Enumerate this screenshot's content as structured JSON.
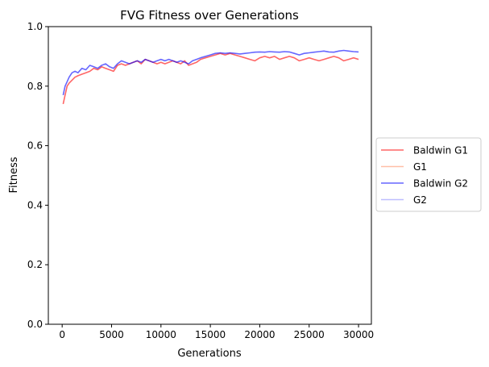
{
  "chart_data": {
    "type": "line",
    "title": "FVG Fitness over Generations",
    "xlabel": "Generations",
    "ylabel": "Fitness",
    "xlim": [
      -1400,
      31300
    ],
    "ylim": [
      0.0,
      1.0
    ],
    "xticks": [
      0,
      5000,
      10000,
      15000,
      20000,
      25000,
      30000
    ],
    "yticks": [
      0.0,
      0.2,
      0.4,
      0.6,
      0.8,
      1.0
    ],
    "xtick_labels": [
      "0",
      "5000",
      "10000",
      "15000",
      "20000",
      "25000",
      "30000"
    ],
    "ytick_labels": [
      "0.0",
      "0.2",
      "0.4",
      "0.6",
      "0.8",
      "1.0"
    ],
    "grid": false,
    "legend_position": "outside-right",
    "series": [
      {
        "name": "Baldwin G1",
        "color": "#ff0000",
        "opacity": 0.6,
        "x": [
          100,
          300,
          500,
          700,
          1000,
          1300,
          1600,
          2000,
          2400,
          2800,
          3200,
          3600,
          4000,
          4400,
          4800,
          5200,
          5600,
          6000,
          6400,
          6800,
          7200,
          7600,
          8000,
          8400,
          8800,
          9200,
          9600,
          10000,
          10400,
          10800,
          11200,
          11600,
          12000,
          12400,
          12800,
          13200,
          13600,
          14000,
          14500,
          15000,
          15500,
          16000,
          16500,
          17000,
          17500,
          18000,
          18500,
          19000,
          19500,
          20000,
          20500,
          21000,
          21500,
          22000,
          22500,
          23000,
          23500,
          24000,
          24500,
          25000,
          25500,
          26000,
          26500,
          27000,
          27500,
          28000,
          28500,
          29000,
          29500,
          30000
        ],
        "values": [
          0.74,
          0.77,
          0.8,
          0.81,
          0.82,
          0.83,
          0.835,
          0.84,
          0.845,
          0.85,
          0.86,
          0.855,
          0.865,
          0.86,
          0.855,
          0.85,
          0.87,
          0.875,
          0.87,
          0.875,
          0.88,
          0.885,
          0.875,
          0.89,
          0.885,
          0.88,
          0.875,
          0.88,
          0.875,
          0.88,
          0.885,
          0.88,
          0.875,
          0.885,
          0.87,
          0.875,
          0.88,
          0.89,
          0.895,
          0.9,
          0.905,
          0.91,
          0.905,
          0.91,
          0.905,
          0.9,
          0.895,
          0.89,
          0.885,
          0.895,
          0.9,
          0.895,
          0.9,
          0.89,
          0.895,
          0.9,
          0.895,
          0.885,
          0.89,
          0.895,
          0.89,
          0.885,
          0.89,
          0.895,
          0.9,
          0.895,
          0.885,
          0.89,
          0.895,
          0.89
        ]
      },
      {
        "name": "G1",
        "color": "#ff7f50",
        "opacity": 0.5,
        "x": [],
        "values": []
      },
      {
        "name": "Baldwin G2",
        "color": "#0000ff",
        "opacity": 0.6,
        "x": [
          100,
          300,
          500,
          700,
          1000,
          1300,
          1600,
          2000,
          2400,
          2800,
          3200,
          3600,
          4000,
          4400,
          4800,
          5200,
          5600,
          6000,
          6400,
          6800,
          7200,
          7600,
          8000,
          8400,
          8800,
          9200,
          9600,
          10000,
          10400,
          10800,
          11200,
          11600,
          12000,
          12400,
          12800,
          13200,
          13600,
          14000,
          14500,
          15000,
          15500,
          16000,
          16500,
          17000,
          17500,
          18000,
          18500,
          19000,
          19500,
          20000,
          20500,
          21000,
          21500,
          22000,
          22500,
          23000,
          23500,
          24000,
          24500,
          25000,
          25500,
          26000,
          26500,
          27000,
          27500,
          28000,
          28500,
          29000,
          29500,
          30000
        ],
        "values": [
          0.77,
          0.8,
          0.815,
          0.83,
          0.845,
          0.85,
          0.845,
          0.86,
          0.855,
          0.87,
          0.865,
          0.86,
          0.87,
          0.875,
          0.865,
          0.86,
          0.875,
          0.885,
          0.88,
          0.875,
          0.88,
          0.885,
          0.88,
          0.89,
          0.885,
          0.88,
          0.885,
          0.89,
          0.885,
          0.89,
          0.885,
          0.88,
          0.885,
          0.88,
          0.875,
          0.885,
          0.89,
          0.895,
          0.9,
          0.905,
          0.91,
          0.912,
          0.91,
          0.912,
          0.91,
          0.908,
          0.91,
          0.912,
          0.914,
          0.915,
          0.914,
          0.916,
          0.915,
          0.914,
          0.916,
          0.915,
          0.91,
          0.905,
          0.91,
          0.912,
          0.914,
          0.916,
          0.918,
          0.915,
          0.914,
          0.918,
          0.92,
          0.918,
          0.916,
          0.915
        ]
      },
      {
        "name": "G2",
        "color": "#7b7bff",
        "opacity": 0.5,
        "x": [],
        "values": []
      }
    ]
  }
}
